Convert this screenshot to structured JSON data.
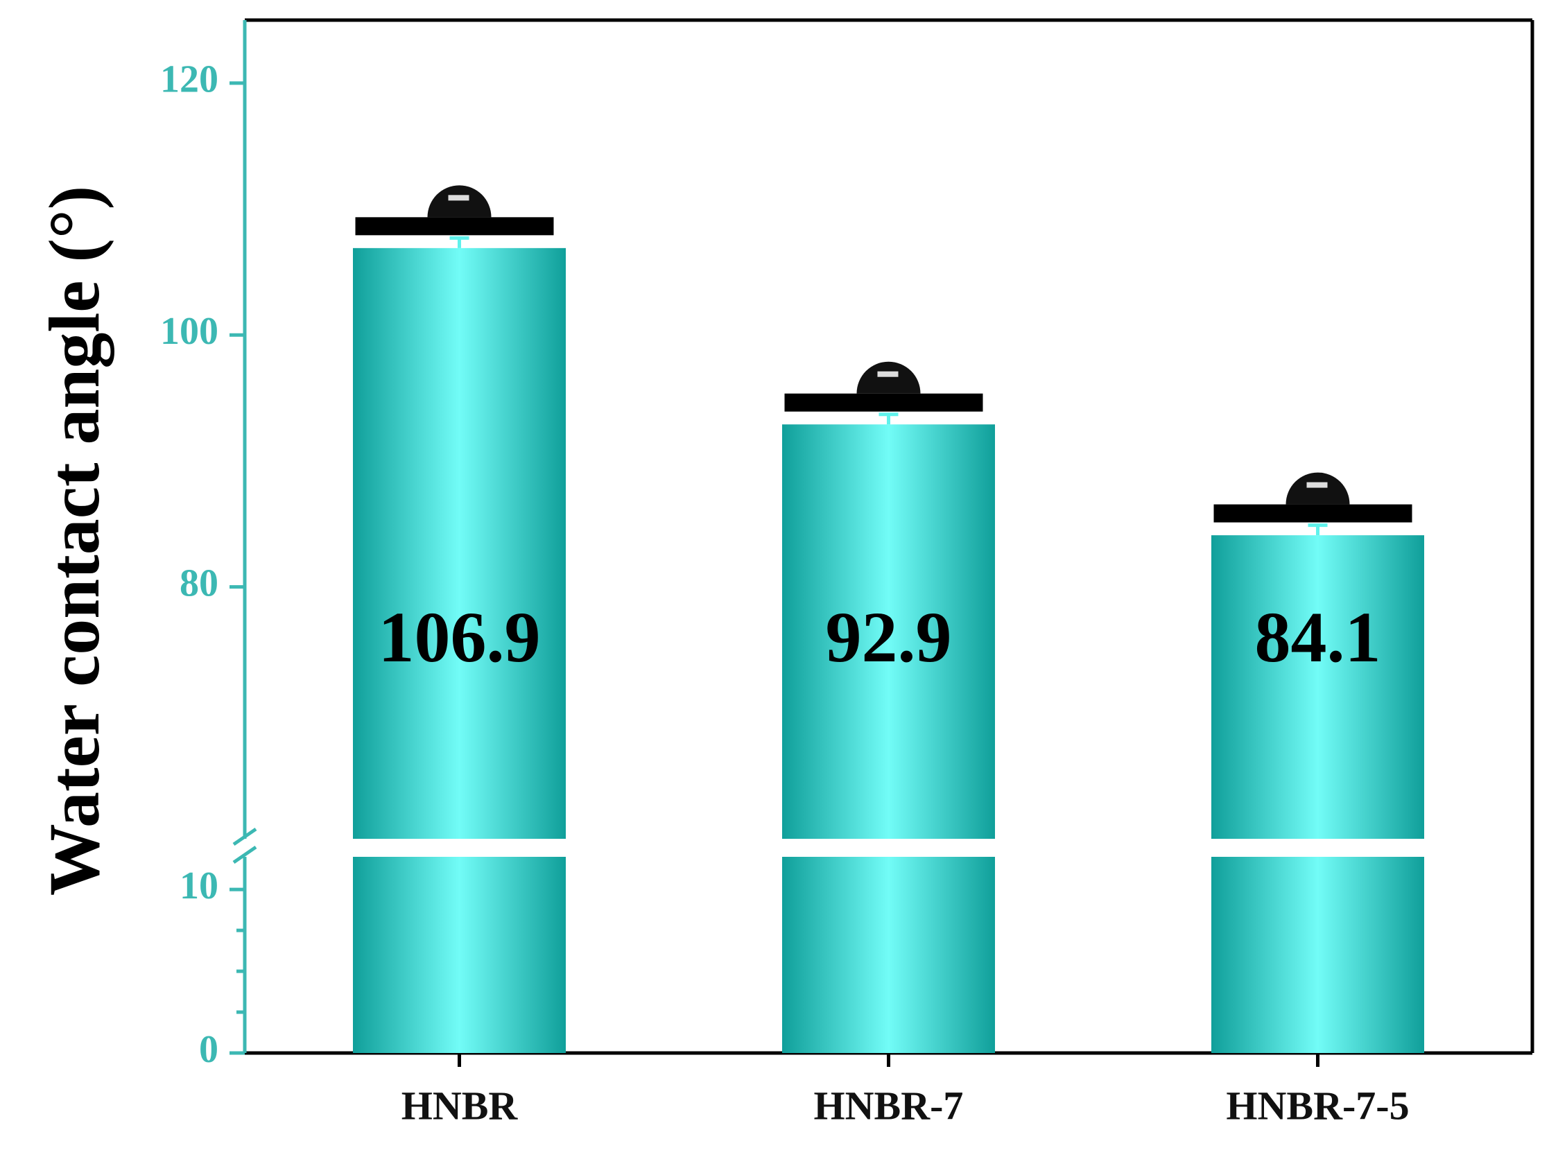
{
  "chart_data": {
    "type": "bar",
    "y_label": "Water contact angle (°)",
    "categories": [
      "HNBR",
      "HNBR-7",
      "HNBR-7-5"
    ],
    "values": [
      106.9,
      92.9,
      84.1
    ],
    "errors": [
      0.8,
      0.8,
      0.8
    ],
    "color": "#109f9a",
    "axis_break": true,
    "segments": [
      {
        "ylim": [
          0,
          12
        ],
        "yticks": [
          0,
          10
        ],
        "yminor_ticks": [
          2.5,
          5,
          7.5
        ]
      },
      {
        "ylim": [
          60,
          125
        ],
        "yticks": [
          80,
          100,
          120
        ]
      }
    ]
  }
}
